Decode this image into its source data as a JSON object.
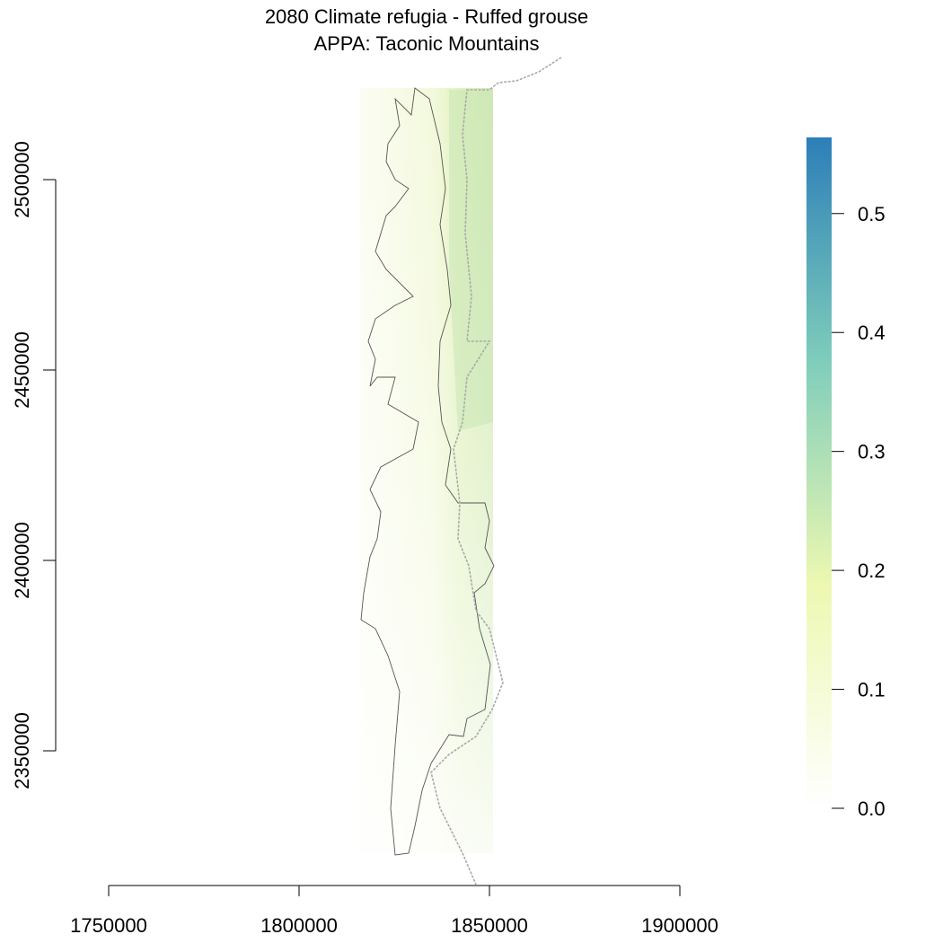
{
  "chart_data": {
    "type": "raster",
    "title": "2080 Climate refugia - Ruffed grouse",
    "subtitle": "APPA: Taconic Mountains",
    "xlim": [
      1750000,
      1900000
    ],
    "xticks": [
      1750000,
      1800000,
      1850000,
      1900000
    ],
    "ylim": [
      2350000,
      2500000
    ],
    "yticks": [
      2350000,
      2400000,
      2450000,
      2500000
    ],
    "zlim": [
      0,
      0.564
    ],
    "zticks": [
      {
        "value": 0,
        "label": "0.0"
      },
      0.1,
      0.2,
      0.3,
      0.4,
      0.5
    ],
    "colors": [
      "#ffffff",
      "#edf8b1",
      "#7fcdbb",
      "#2c7fb8"
    ]
  }
}
